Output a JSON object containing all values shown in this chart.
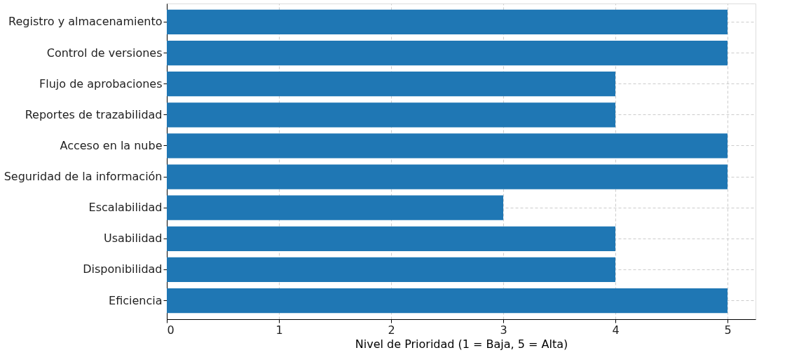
{
  "chart_data": {
    "type": "bar",
    "orientation": "horizontal",
    "xlabel": "Nivel de Prioridad (1 = Baja, 5 = Alta)",
    "categories": [
      "Registro y almacenamiento",
      "Control de versiones",
      "Flujo de aprobaciones",
      "Reportes de trazabilidad",
      "Acceso en la nube",
      "Seguridad de la información",
      "Escalabilidad",
      "Usabilidad",
      "Disponibilidad",
      "Eficiencia"
    ],
    "values": [
      5,
      5,
      4,
      4,
      5,
      5,
      3,
      4,
      4,
      5
    ],
    "color": "#1f77b4",
    "xlim": [
      0,
      5.25
    ],
    "xticks": [
      0,
      1,
      2,
      3,
      4,
      5
    ],
    "grid": true,
    "line_style": "dashed"
  }
}
